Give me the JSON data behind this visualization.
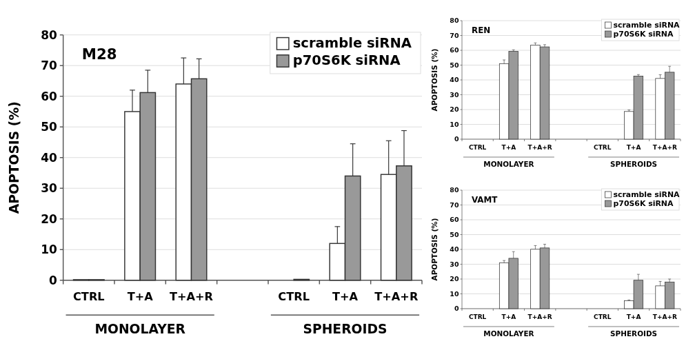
{
  "chart_data": [
    {
      "type": "bar",
      "title": "M28",
      "ylabel": "APOPTOSIS (%)",
      "categories": [
        "CTRL",
        "T+A",
        "T+A+R",
        null,
        "CTRL",
        "T+A",
        "T+A+R"
      ],
      "series": [
        {
          "name": "scramble siRNA",
          "color": "#ffffff",
          "values": [
            0.2,
            55,
            64,
            null,
            0,
            12,
            34.5
          ],
          "errors": [
            null,
            7,
            8.5,
            null,
            null,
            5.5,
            11
          ]
        },
        {
          "name": "p70S6K siRNA",
          "color": "#999999",
          "values": [
            0.2,
            61.2,
            65.7,
            null,
            0.3,
            34,
            37.3
          ],
          "errors": [
            null,
            7.3,
            6.5,
            null,
            null,
            10.5,
            11.5
          ]
        }
      ],
      "ylim": [
        0,
        80
      ],
      "yticks": [
        0,
        10,
        20,
        30,
        40,
        50,
        60,
        70,
        80
      ],
      "grid": "y",
      "legend": "top right",
      "annotations": [
        "MONOLAYER",
        "SPHEROIDS"
      ]
    },
    {
      "type": "bar",
      "title": "REN",
      "ylabel": "APOPTOSIS (%)",
      "categories": [
        "CTRL",
        "T+A",
        "T+A+R",
        null,
        "CTRL",
        "T+A",
        "T+A+R"
      ],
      "series": [
        {
          "name": "scramble siRNA",
          "color": "#ffffff",
          "values": [
            0,
            51,
            63.5,
            null,
            0,
            18.7,
            41
          ],
          "errors": [
            null,
            2.5,
            1.5,
            null,
            null,
            1,
            2.5
          ]
        },
        {
          "name": "p70S6K siRNA",
          "color": "#999999",
          "values": [
            0,
            59.3,
            62.3,
            null,
            0,
            42.6,
            45.2
          ],
          "errors": [
            null,
            1,
            1.5,
            null,
            null,
            1,
            4
          ]
        }
      ],
      "ylim": [
        0,
        80
      ],
      "yticks": [
        0,
        10,
        20,
        30,
        40,
        50,
        60,
        70,
        80
      ],
      "grid": "y",
      "legend": "top right",
      "annotations": [
        "MONOLAYER",
        "SPHEROIDS"
      ]
    },
    {
      "type": "bar",
      "title": "VAMT",
      "ylabel": "APOPTOSIS (%)",
      "categories": [
        "CTRL",
        "T+A",
        "T+A+R",
        null,
        "CTRL",
        "T+A",
        "T+A+R"
      ],
      "series": [
        {
          "name": "scramble siRNA",
          "color": "#ffffff",
          "values": [
            0,
            31,
            40.1,
            null,
            0,
            5.4,
            15.4
          ],
          "errors": [
            null,
            1.5,
            2.5,
            null,
            null,
            0.5,
            3
          ]
        },
        {
          "name": "p70S6K siRNA",
          "color": "#999999",
          "values": [
            0,
            34,
            41,
            null,
            0,
            19.2,
            18
          ],
          "errors": [
            null,
            4.5,
            2.5,
            null,
            null,
            4,
            2
          ]
        }
      ],
      "ylim": [
        0,
        80
      ],
      "yticks": [
        0,
        10,
        20,
        30,
        40,
        50,
        60,
        70,
        80
      ],
      "grid": "y",
      "legend": "top right",
      "annotations": [
        "MONOLAYER",
        "SPHEROIDS"
      ]
    }
  ]
}
